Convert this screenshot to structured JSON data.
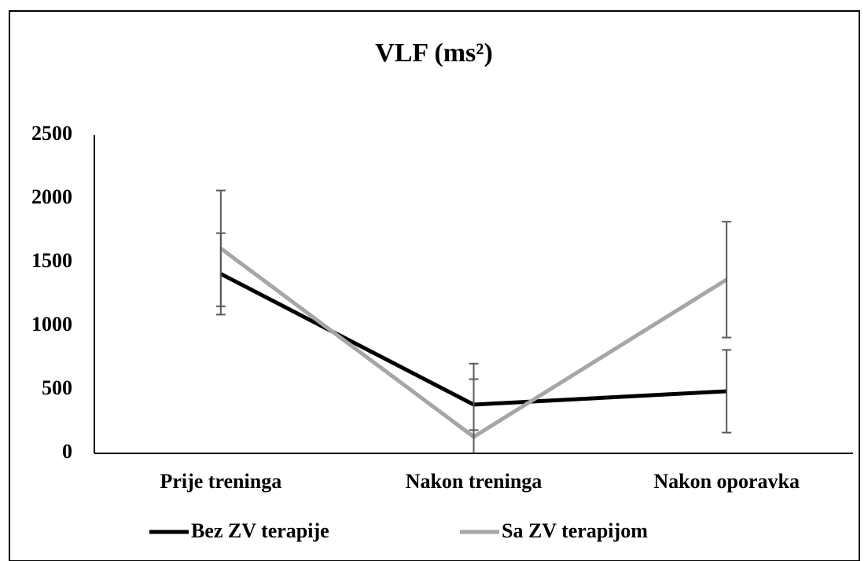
{
  "chart_data": {
    "type": "line",
    "title": "VLF (ms²)",
    "categories": [
      "Prije treninga",
      "Nakon treninga",
      "Nakon oporavka"
    ],
    "series": [
      {
        "name": "Bez ZV terapije",
        "color": "#000000",
        "values": [
          1410,
          383,
          488
        ],
        "error": [
          320,
          200,
          325
        ]
      },
      {
        "name": "Sa ZV terapijom",
        "color": "#a6a6a6",
        "values": [
          1610,
          130,
          1365
        ],
        "error": [
          455,
          575,
          455
        ]
      }
    ],
    "error_color": "#595959",
    "ylim": [
      0,
      2500
    ],
    "yticks": [
      0,
      500,
      1000,
      1500,
      2000,
      2500
    ],
    "grid": false,
    "legend": "bottom"
  }
}
